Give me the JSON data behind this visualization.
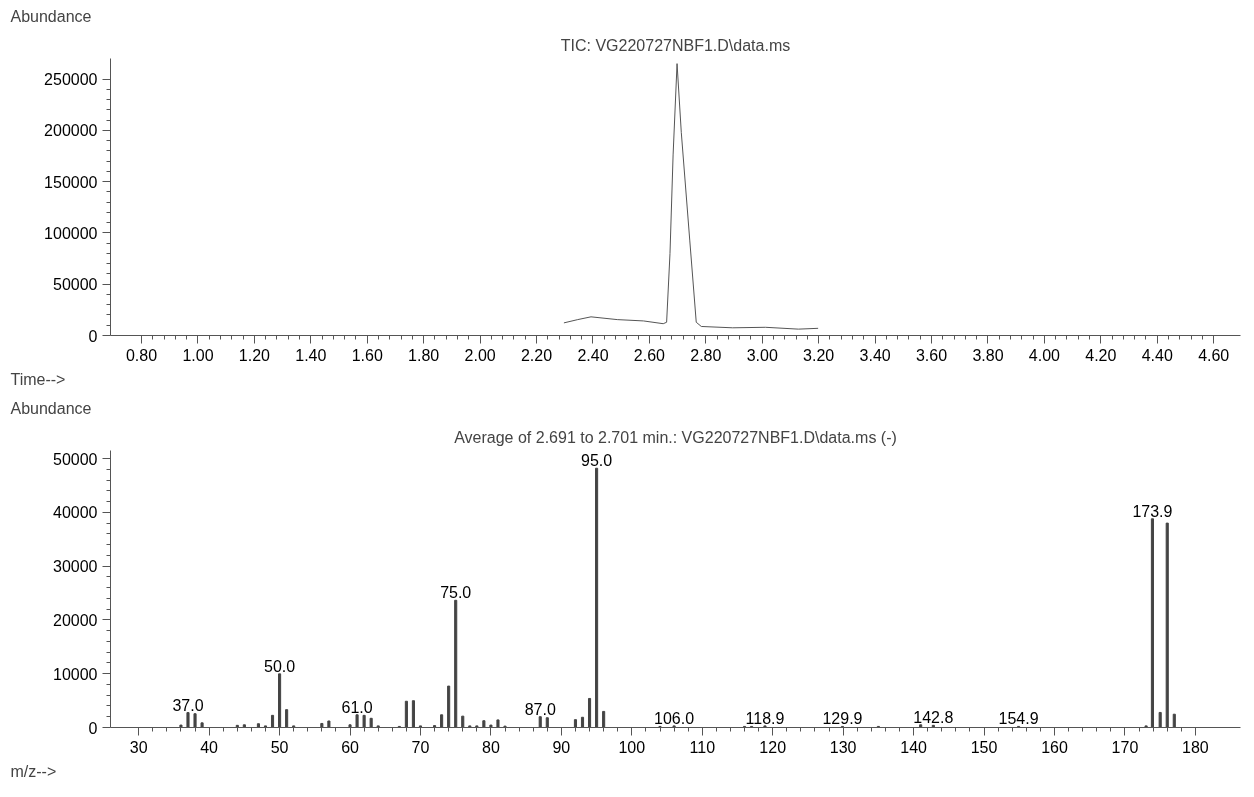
{
  "chart_data": [
    {
      "type": "line",
      "title": "TIC: VG220727NBF1.D\\data.ms",
      "ylabel": "Abundance",
      "xlabel": "Time-->",
      "color": "#555555",
      "grid": false,
      "x": [
        2.297,
        2.346,
        2.393,
        2.486,
        2.579,
        2.649,
        2.661,
        2.673,
        2.684,
        2.698,
        2.713,
        2.743,
        2.766,
        2.784,
        2.895,
        3.011,
        3.128,
        3.198
      ],
      "values": [
        12300,
        15500,
        18200,
        15500,
        14200,
        11500,
        12900,
        80000,
        176000,
        265000,
        198000,
        93000,
        12900,
        8800,
        7500,
        8000,
        6200,
        7000
      ],
      "xlim": [
        0.69,
        4.695
      ],
      "ylim": [
        0,
        270000
      ],
      "xticks": [
        {
          "value": 0.8,
          "label": "0.80"
        },
        {
          "value": 1.0,
          "label": "1.00"
        },
        {
          "value": 1.2,
          "label": "1.20"
        },
        {
          "value": 1.4,
          "label": "1.40"
        },
        {
          "value": 1.6,
          "label": "1.60"
        },
        {
          "value": 1.8,
          "label": "1.80"
        },
        {
          "value": 2.0,
          "label": "2.00"
        },
        {
          "value": 2.2,
          "label": "2.20"
        },
        {
          "value": 2.4,
          "label": "2.40"
        },
        {
          "value": 2.6,
          "label": "2.60"
        },
        {
          "value": 2.8,
          "label": "2.80"
        },
        {
          "value": 3.0,
          "label": "3.00"
        },
        {
          "value": 3.2,
          "label": "3.20"
        },
        {
          "value": 3.4,
          "label": "3.40"
        },
        {
          "value": 3.6,
          "label": "3.60"
        },
        {
          "value": 3.8,
          "label": "3.80"
        },
        {
          "value": 4.0,
          "label": "4.00"
        },
        {
          "value": 4.2,
          "label": "4.20"
        },
        {
          "value": 4.4,
          "label": "4.40"
        },
        {
          "value": 4.6,
          "label": "4.60"
        }
      ],
      "yticks": [
        0,
        50000,
        100000,
        150000,
        200000,
        250000
      ]
    },
    {
      "type": "bar",
      "title": "Average of 2.691 to 2.701 min.: VG220727NBF1.D\\data.ms (-)",
      "ylabel": "Abundance",
      "xlabel": "m/z-->",
      "color": "#444444",
      "grid": false,
      "x": [
        36,
        37,
        38,
        39,
        44,
        45,
        47,
        48,
        49,
        50,
        51,
        52,
        56,
        57,
        60,
        61,
        62,
        63,
        64,
        67,
        68,
        69,
        70,
        72,
        73,
        74,
        75,
        76,
        77,
        78,
        79,
        80,
        81,
        82,
        87,
        88,
        92,
        93,
        94,
        95,
        96,
        104,
        106,
        116,
        117,
        118.9,
        129.9,
        135,
        141,
        142.8,
        154.9,
        173,
        173.9,
        175,
        176,
        177
      ],
      "values": [
        450,
        2770,
        2560,
        860,
        400,
        500,
        700,
        300,
        2260,
        9970,
        3320,
        300,
        750,
        1210,
        500,
        2360,
        2260,
        1710,
        300,
        200,
        4880,
        4980,
        300,
        350,
        2360,
        7700,
        23650,
        2110,
        300,
        300,
        1260,
        450,
        1410,
        250,
        2010,
        1810,
        1460,
        1900,
        5400,
        48200,
        2990,
        200,
        300,
        200,
        200,
        300,
        200,
        200,
        500,
        400,
        200,
        300,
        38800,
        2800,
        38000,
        2470
      ],
      "xlim": [
        26,
        186.4
      ],
      "ylim": [
        0,
        51500
      ],
      "xticks": [
        30,
        40,
        50,
        60,
        70,
        80,
        90,
        100,
        110,
        120,
        130,
        140,
        150,
        160,
        170,
        180
      ],
      "yticks": [
        0,
        10000,
        20000,
        30000,
        40000,
        50000
      ],
      "annotations": [
        {
          "text": "37.0",
          "x": 37,
          "y": 2770
        },
        {
          "text": "50.0",
          "x": 50,
          "y": 9970
        },
        {
          "text": "61.0",
          "x": 61,
          "y": 2360
        },
        {
          "text": "75.0",
          "x": 75,
          "y": 23650
        },
        {
          "text": "87.0",
          "x": 87,
          "y": 2010
        },
        {
          "text": "95.0",
          "x": 95,
          "y": 48200
        },
        {
          "text": "106.0",
          "x": 106,
          "y": 300
        },
        {
          "text": "118.9",
          "x": 118.9,
          "y": 300
        },
        {
          "text": "129.9",
          "x": 129.9,
          "y": 300
        },
        {
          "text": "142.8",
          "x": 142.8,
          "y": 400
        },
        {
          "text": "154.9",
          "x": 154.9,
          "y": 200
        },
        {
          "text": "173.9",
          "x": 173.9,
          "y": 38800
        }
      ]
    }
  ]
}
